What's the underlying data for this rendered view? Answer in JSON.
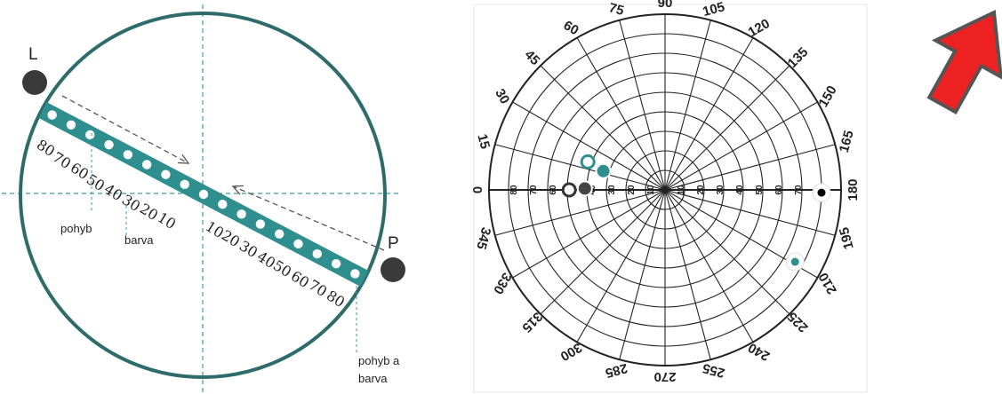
{
  "left_diagram": {
    "left_marker": "L",
    "right_marker": "P",
    "left_scale": [
      "80",
      "70",
      "60",
      "50",
      "40",
      "30",
      "20",
      "10"
    ],
    "right_scale": [
      "10",
      "20",
      "30",
      "40",
      "50",
      "60",
      "70",
      "80"
    ],
    "callouts": {
      "motion": "pohyb",
      "color": "barva",
      "motion_color_1": "pohyb a",
      "motion_color_2": "barva"
    },
    "colors": {
      "ring": "#2e6b6b",
      "bar": "#2f8f8f",
      "marker": "#3a3a3a",
      "axis": "#3a9a9a"
    }
  },
  "polar_chart": {
    "angle_labels": [
      "0",
      "15",
      "30",
      "45",
      "60",
      "75",
      "90",
      "105",
      "120",
      "135",
      "150",
      "165",
      "180",
      "195",
      "210",
      "225",
      "240",
      "255",
      "270",
      "285",
      "300",
      "315",
      "330",
      "345"
    ],
    "radial_labels": [
      "10",
      "20",
      "30",
      "40",
      "50",
      "60",
      "70",
      "80"
    ],
    "radial_max": 90,
    "points": [
      {
        "name": "open-teal",
        "angle": 20,
        "radius": 42,
        "style": "open",
        "color": "#2f8f8f"
      },
      {
        "name": "filled-teal",
        "angle": 17,
        "radius": 33,
        "style": "filled",
        "color": "#2f8f8f"
      },
      {
        "name": "open-dark",
        "angle": 0,
        "radius": 49,
        "style": "open",
        "color": "#333333"
      },
      {
        "name": "filled-dark",
        "angle": 1,
        "radius": 41,
        "style": "filled",
        "color": "#444444"
      },
      {
        "name": "edge-black",
        "angle": 181,
        "radius": 80,
        "style": "edge",
        "color": "#000000"
      },
      {
        "name": "edge-teal",
        "angle": 209,
        "radius": 76,
        "style": "edge",
        "color": "#2f8f8f"
      }
    ]
  },
  "arrow": {
    "color": "#ee2222",
    "outline": "#555555"
  }
}
